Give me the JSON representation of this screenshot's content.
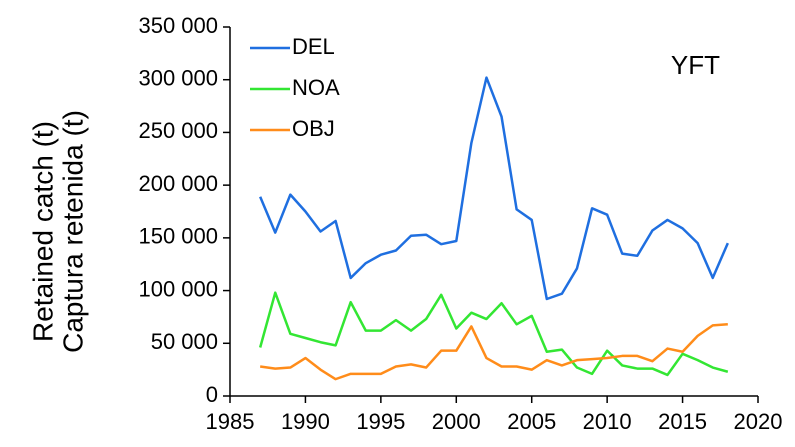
{
  "chart_data": {
    "type": "line",
    "y_label_lines": [
      "Retained catch (t)",
      "Captura retenida (t)"
    ],
    "annotation": "YFT",
    "x": [
      1987,
      1988,
      1989,
      1990,
      1991,
      1992,
      1993,
      1994,
      1995,
      1996,
      1997,
      1998,
      1999,
      2000,
      2001,
      2002,
      2003,
      2004,
      2005,
      2006,
      2007,
      2008,
      2009,
      2010,
      2011,
      2012,
      2013,
      2014,
      2015,
      2016,
      2017,
      2018
    ],
    "series": [
      {
        "name": "DEL",
        "color": "#1f6fe0",
        "values": [
          189000,
          155000,
          191000,
          175000,
          156000,
          166000,
          112000,
          126000,
          134000,
          138000,
          152000,
          153000,
          144000,
          147000,
          240000,
          302000,
          265000,
          177000,
          167000,
          92000,
          97000,
          121000,
          178000,
          172000,
          135000,
          133000,
          157000,
          167000,
          159000,
          145000,
          112000,
          145000
        ]
      },
      {
        "name": "NOA",
        "color": "#33e633",
        "values": [
          46000,
          98000,
          59000,
          55000,
          51000,
          48000,
          89000,
          62000,
          62000,
          72000,
          62000,
          73000,
          96000,
          64000,
          79000,
          73000,
          88000,
          68000,
          76000,
          42000,
          44000,
          27000,
          21000,
          43000,
          29000,
          26000,
          26000,
          20000,
          40000,
          34000,
          27000,
          23000
        ]
      },
      {
        "name": "OBJ",
        "color": "#ff8c1a",
        "values": [
          28000,
          26000,
          27000,
          36000,
          25000,
          16000,
          21000,
          21000,
          21000,
          28000,
          30000,
          27000,
          43000,
          43000,
          66000,
          36000,
          28000,
          28000,
          25000,
          34000,
          29000,
          34000,
          35000,
          36000,
          38000,
          38000,
          33000,
          45000,
          42000,
          57000,
          67000,
          68000
        ]
      }
    ],
    "xlim": [
      1985,
      2020
    ],
    "xticks": [
      1985,
      1990,
      1995,
      2000,
      2005,
      2010,
      2015,
      2020
    ],
    "ylim": [
      0,
      350000
    ],
    "yticks": [
      0,
      {
        "value": 50000,
        "label": "50 000"
      },
      {
        "value": 100000,
        "label": "100 000"
      },
      {
        "value": 150000,
        "label": "150 000"
      },
      {
        "value": 200000,
        "label": "200 000"
      },
      {
        "value": 250000,
        "label": "250 000"
      },
      {
        "value": 300000,
        "label": "300 000"
      },
      {
        "value": 350000,
        "label": "350 000"
      }
    ],
    "legend": "upper left",
    "grid": false
  }
}
